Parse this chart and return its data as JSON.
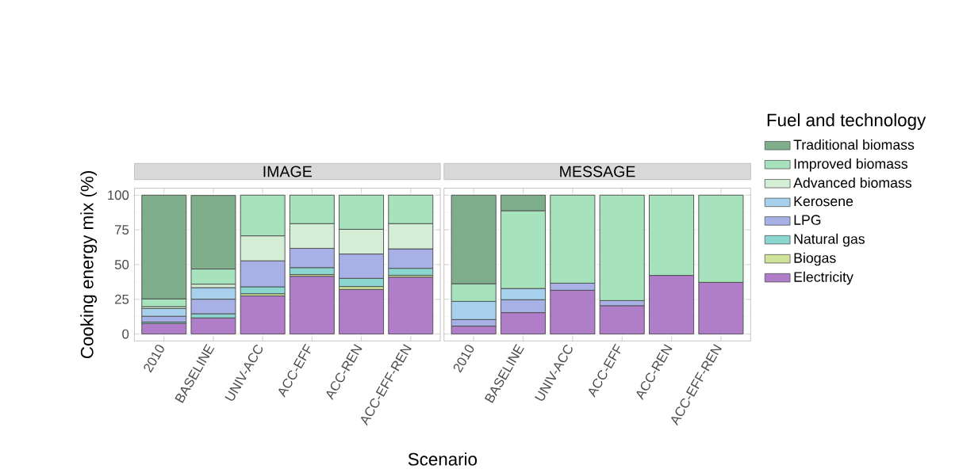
{
  "chart_data": [
    {
      "type": "bar",
      "stacked": true,
      "title": "IMAGE",
      "xlabel": "Scenario",
      "ylabel": "Cooking energy mix (%)",
      "categories": [
        "2010",
        "BASELINE",
        "UNIV-ACC",
        "ACC-EFF",
        "ACC-REN",
        "ACC-EFF-REN"
      ],
      "ylim": [
        -5,
        105
      ],
      "yticks": [
        0,
        25,
        50,
        75,
        100
      ],
      "grid": true,
      "series": [
        {
          "color": "#b07ec9",
          "values": [
            7.6,
            11.6,
            27.4,
            41.6,
            32.1,
            41.0
          ]
        },
        {
          "color": "#cfe49a",
          "values": [
            null,
            null,
            1.6,
            1.2,
            2.1,
            1.3
          ]
        },
        {
          "color": "#8bd6d0",
          "values": [
            1.0,
            3.0,
            5.0,
            5.0,
            5.9,
            5.0
          ]
        },
        {
          "color": "#a7b1e5",
          "values": [
            4.2,
            10.5,
            18.7,
            13.9,
            17.5,
            14.0
          ]
        },
        {
          "color": "#a6d0ec",
          "values": [
            5.5,
            8.3,
            null,
            null,
            null,
            null
          ]
        },
        {
          "color": "#d4eed6",
          "values": [
            1.4,
            2.5,
            18.0,
            17.8,
            17.8,
            18.2
          ]
        },
        {
          "color": "#a6e3bc",
          "values": [
            5.6,
            10.9,
            29.3,
            20.5,
            24.6,
            20.5
          ]
        },
        {
          "color": "#7fae8a",
          "values": [
            74.7,
            53.0,
            null,
            null,
            null,
            null
          ]
        }
      ]
    },
    {
      "type": "bar",
      "stacked": true,
      "title": "MESSAGE",
      "legend_title": "Fuel and technology",
      "legend": "right",
      "tick_labels": "x",
      "categories": [
        "2010",
        "BASELINE",
        "UNIV-ACC",
        "ACC-EFF",
        "ACC-REN",
        "ACC-EFF-REN"
      ],
      "ylim": [
        -5,
        105
      ],
      "yticks": [
        0,
        25,
        50,
        75,
        100
      ],
      "grid": true,
      "series": [
        {
          "name": "Electricity",
          "color": "#b07ec9",
          "values": [
            5.7,
            15.4,
            31.5,
            20.4,
            42.2,
            37.2
          ]
        },
        {
          "name": "Biogas",
          "color": "#cfe49a",
          "values": [
            null,
            null,
            null,
            null,
            null,
            null
          ]
        },
        {
          "name": "Natural gas",
          "color": "#8bd6d0",
          "values": [
            null,
            null,
            null,
            null,
            null,
            null
          ]
        },
        {
          "name": "LPG",
          "color": "#a7b1e5",
          "values": [
            4.7,
            9.3,
            5.1,
            3.7,
            null,
            null
          ]
        },
        {
          "name": "Kerosene",
          "color": "#a6d0ec",
          "values": [
            13.1,
            8.1,
            null,
            null,
            null,
            null
          ]
        },
        {
          "name": "Advanced biomass",
          "color": "#d4eed6",
          "values": [
            null,
            null,
            null,
            null,
            null,
            null
          ]
        },
        {
          "name": "Improved biomass",
          "color": "#a6e3bc",
          "values": [
            12.7,
            56.0,
            63.4,
            75.9,
            57.8,
            62.8
          ]
        },
        {
          "name": "Traditional biomass",
          "color": "#7fae8a",
          "values": [
            63.8,
            11.2,
            null,
            null,
            null,
            null
          ]
        }
      ]
    }
  ]
}
